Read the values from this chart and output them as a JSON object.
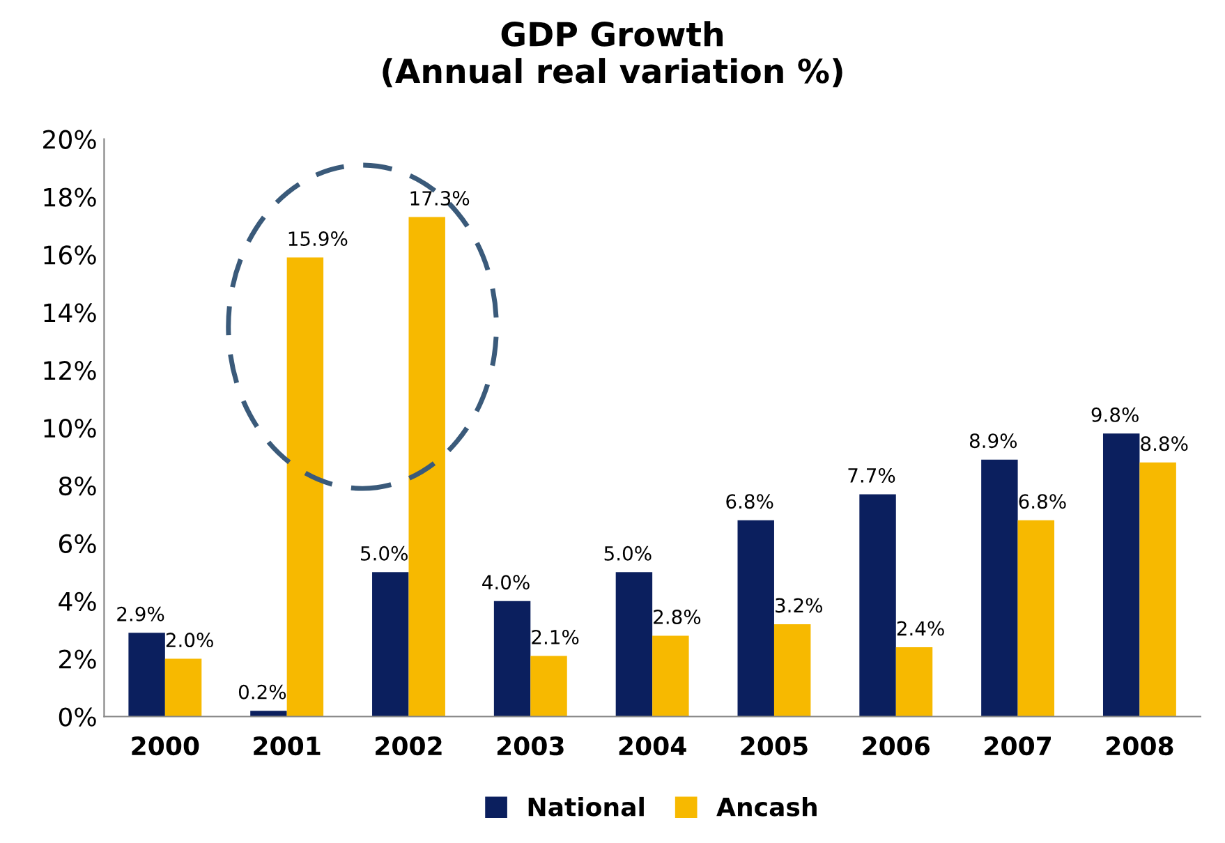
{
  "chart_data": {
    "type": "bar",
    "title": "GDP Growth\n(Annual real variation %)",
    "categories": [
      "2000",
      "2001",
      "2002",
      "2003",
      "2004",
      "2005",
      "2006",
      "2007",
      "2008"
    ],
    "series": [
      {
        "name": "National",
        "color": "#0b1f5e",
        "values": [
          2.9,
          0.2,
          5.0,
          4.0,
          5.0,
          6.8,
          7.7,
          8.9,
          9.8
        ],
        "value_labels": [
          "2.9%",
          "0.2%",
          "5.0%",
          "4.0%",
          "5.0%",
          "6.8%",
          "7.7%",
          "8.9%",
          "9.8%"
        ]
      },
      {
        "name": "Ancash",
        "color": "#f7b900",
        "values": [
          2.0,
          15.9,
          17.3,
          2.1,
          2.8,
          3.2,
          2.4,
          6.8,
          8.8
        ],
        "value_labels": [
          "2.0%",
          "15.9%",
          "17.3%",
          "2.1%",
          "2.8%",
          "3.2%",
          "2.4%",
          "6.8%",
          "8.8%"
        ]
      }
    ],
    "ylim": [
      0,
      20
    ],
    "yticks": [
      {
        "value": 0,
        "label": "0%"
      },
      {
        "value": 2,
        "label": "2%"
      },
      {
        "value": 4,
        "label": "4%"
      },
      {
        "value": 6,
        "label": "6%"
      },
      {
        "value": 8,
        "label": "8%"
      },
      {
        "value": 10,
        "label": "10%"
      },
      {
        "value": 12,
        "label": "12%"
      },
      {
        "value": 14,
        "label": "14%"
      },
      {
        "value": 16,
        "label": "16%"
      },
      {
        "value": 18,
        "label": "18%"
      },
      {
        "value": 20,
        "label": "20%"
      }
    ],
    "grid": false,
    "legend": "bottom"
  }
}
